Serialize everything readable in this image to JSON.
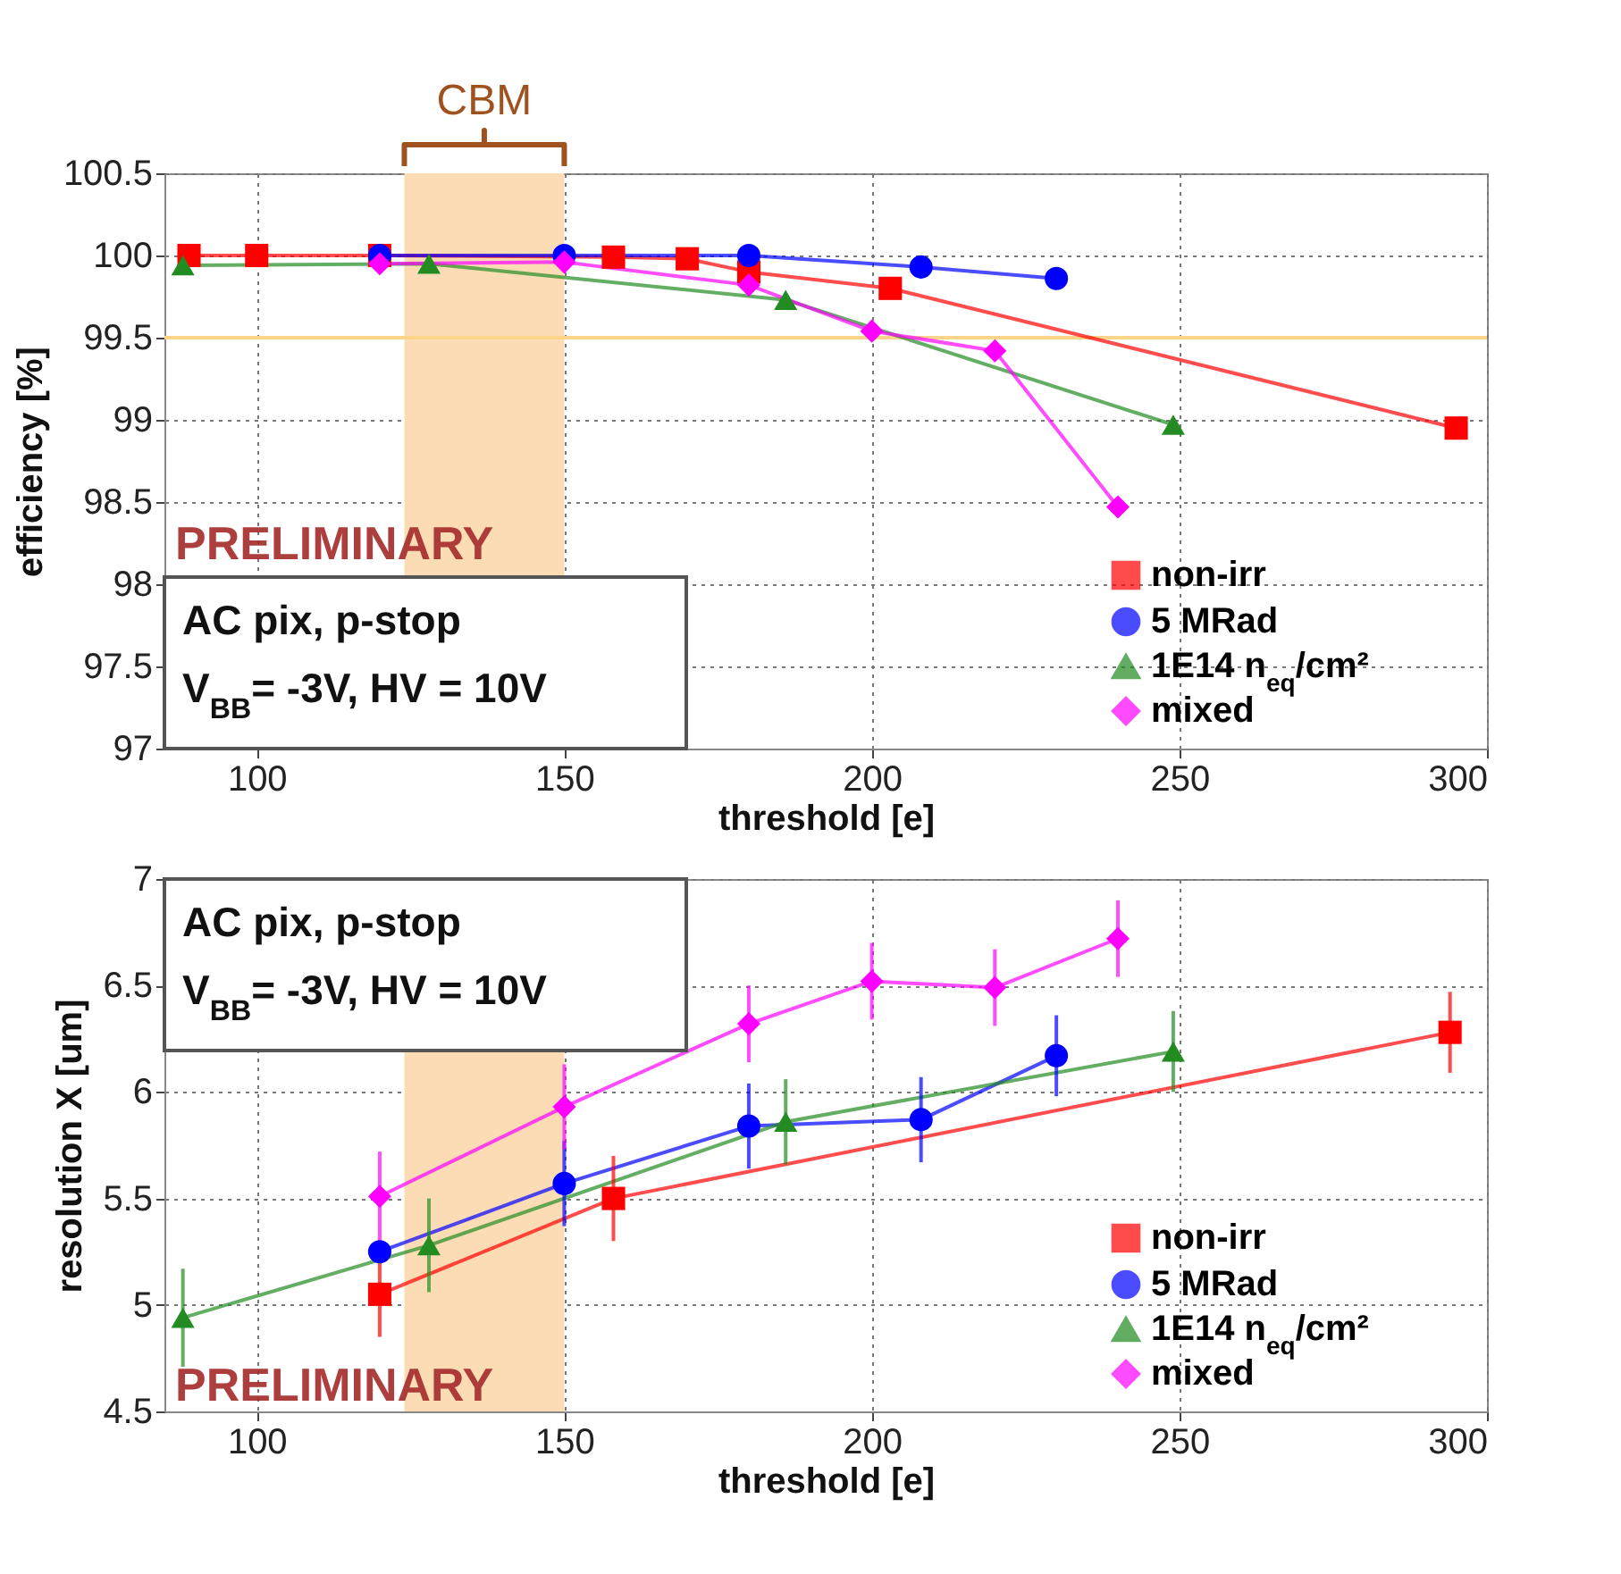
{
  "chart_data": [
    {
      "type": "line",
      "xlabel": "threshold [e]",
      "ylabel": "efficiency [%]",
      "xlim": [
        85,
        300
      ],
      "xticks": [
        100,
        150,
        200,
        250,
        300
      ],
      "ylim": [
        97,
        100.5
      ],
      "yticks": [
        97,
        97.5,
        98,
        98.5,
        99,
        99.5,
        100,
        100.5
      ],
      "grid": true,
      "legend": "bottom right",
      "ref_lines": [
        {
          "axis": "y",
          "value": 99.5,
          "color": "#fdd58a"
        }
      ],
      "bands": [
        {
          "axis": "x",
          "from": 124,
          "to": 150,
          "label": "CBM",
          "color": "#fbdcb5"
        }
      ],
      "annotations": [
        "PRELIMINARY",
        "AC pix, p-stop",
        "V$_{BB}$= -3V, HV = 10V"
      ],
      "series": [
        {
          "name": "non-irr",
          "color": "#ff0000",
          "marker": "square",
          "x": [
            89,
            100,
            120,
            158,
            170,
            180,
            203,
            295
          ],
          "values": [
            100,
            100,
            100,
            99.99,
            99.98,
            99.9,
            99.8,
            98.95
          ]
        },
        {
          "name": "5 MRad",
          "color": "#0000ff",
          "marker": "circle",
          "x": [
            120,
            150,
            180,
            208,
            230
          ],
          "values": [
            100,
            100,
            100,
            99.93,
            99.86
          ]
        },
        {
          "name": "1E14 n$_{eq}$/cm²",
          "color": "#228b22",
          "marker": "triangle",
          "x": [
            88,
            128,
            186,
            249
          ],
          "values": [
            99.94,
            99.95,
            99.73,
            98.97
          ]
        },
        {
          "name": "mixed",
          "color": "#ff00ff",
          "marker": "diamond",
          "x": [
            120,
            150,
            180,
            200,
            220,
            240
          ],
          "values": [
            99.95,
            99.96,
            99.82,
            99.54,
            99.42,
            98.47
          ]
        }
      ]
    },
    {
      "type": "line",
      "xlabel": "threshold [e]",
      "ylabel": "resolution X [um]",
      "xlim": [
        85,
        300
      ],
      "xticks": [
        100,
        150,
        200,
        250,
        300
      ],
      "ylim": [
        4.5,
        7
      ],
      "yticks": [
        4.5,
        5,
        5.5,
        6,
        6.5,
        7
      ],
      "grid": true,
      "legend": "bottom right",
      "bands": [
        {
          "axis": "x",
          "from": 124,
          "to": 150,
          "color": "#fbdcb5"
        }
      ],
      "annotations": [
        "PRELIMINARY",
        "AC pix, p-stop",
        "V$_{BB}$= -3V, HV = 10V"
      ],
      "series": [
        {
          "name": "non-irr",
          "color": "#ff0000",
          "marker": "square",
          "x": [
            120,
            158,
            294
          ],
          "values": [
            5.05,
            5.5,
            6.28
          ],
          "errors": [
            0.2,
            0.2,
            0.19
          ]
        },
        {
          "name": "5 MRad",
          "color": "#0000ff",
          "marker": "circle",
          "x": [
            120,
            150,
            180,
            208,
            230
          ],
          "values": [
            5.25,
            5.57,
            5.84,
            5.87,
            6.17
          ],
          "errors": [
            null,
            0.2,
            0.2,
            0.2,
            0.19
          ]
        },
        {
          "name": "1E14 n$_{eq}$/cm²",
          "color": "#228b22",
          "marker": "triangle",
          "x": [
            88,
            128,
            186,
            249
          ],
          "values": [
            4.94,
            5.28,
            5.86,
            6.19
          ],
          "errors": [
            0.23,
            0.22,
            0.2,
            0.19
          ]
        },
        {
          "name": "mixed",
          "color": "#ff00ff",
          "marker": "diamond",
          "x": [
            120,
            150,
            180,
            200,
            220,
            240
          ],
          "values": [
            5.51,
            5.93,
            6.32,
            6.52,
            6.49,
            6.72
          ],
          "errors": [
            0.21,
            0.2,
            0.18,
            0.18,
            0.18,
            0.18
          ]
        }
      ]
    }
  ]
}
